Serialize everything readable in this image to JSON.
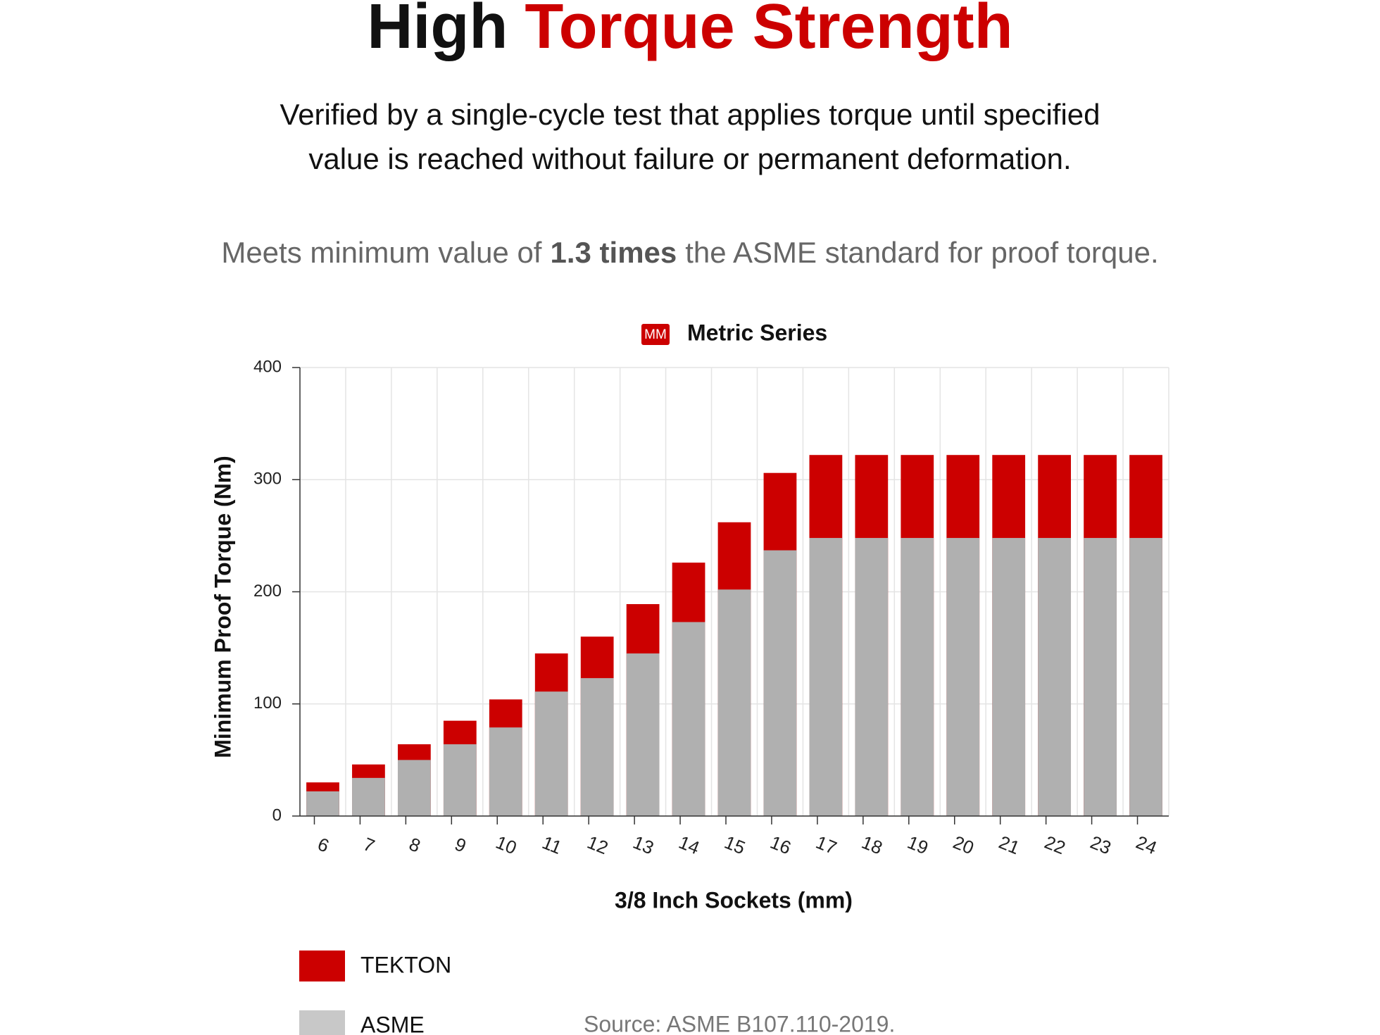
{
  "heading": {
    "title": [
      "High",
      "Torque Strength"
    ],
    "subtitle": [
      "Verified by a single-cycle test that applies torque until specified",
      "value is reached without failure or permanent deformation."
    ],
    "note": [
      "Meets minimum value of",
      "1.3 times",
      "the ASME standard for proof torque."
    ],
    "source": "Source: ASME B107.110-2019."
  },
  "chart_data": {
    "type": "bar",
    "overlap": true,
    "badge": "MM",
    "title": "Metric Series",
    "x_label": "3/8 Inch Sockets (mm)",
    "y_label": "Minimum Proof Torque (Nm)",
    "categories": [
      "6",
      "7",
      "8",
      "9",
      "10",
      "11",
      "12",
      "13",
      "14",
      "15",
      "16",
      "17",
      "18",
      "19",
      "20",
      "21",
      "22",
      "23",
      "24"
    ],
    "series": [
      {
        "name": "TEKTON",
        "color": "#cc0000",
        "values": [
          30,
          46,
          64,
          85,
          104,
          145,
          160,
          189,
          226,
          262,
          306,
          322,
          322,
          322,
          322,
          322,
          322,
          322,
          322
        ]
      },
      {
        "name": "ASME",
        "color": "#b0b0b0",
        "legend_color": "#c8c8c8",
        "values": [
          22,
          34,
          50,
          64,
          79,
          111,
          123,
          145,
          173,
          202,
          237,
          248,
          248,
          248,
          248,
          248,
          248,
          248,
          248
        ]
      }
    ],
    "ylim": [
      0,
      400
    ],
    "yticks": [
      0,
      100,
      200,
      300,
      400
    ],
    "grid": true
  }
}
